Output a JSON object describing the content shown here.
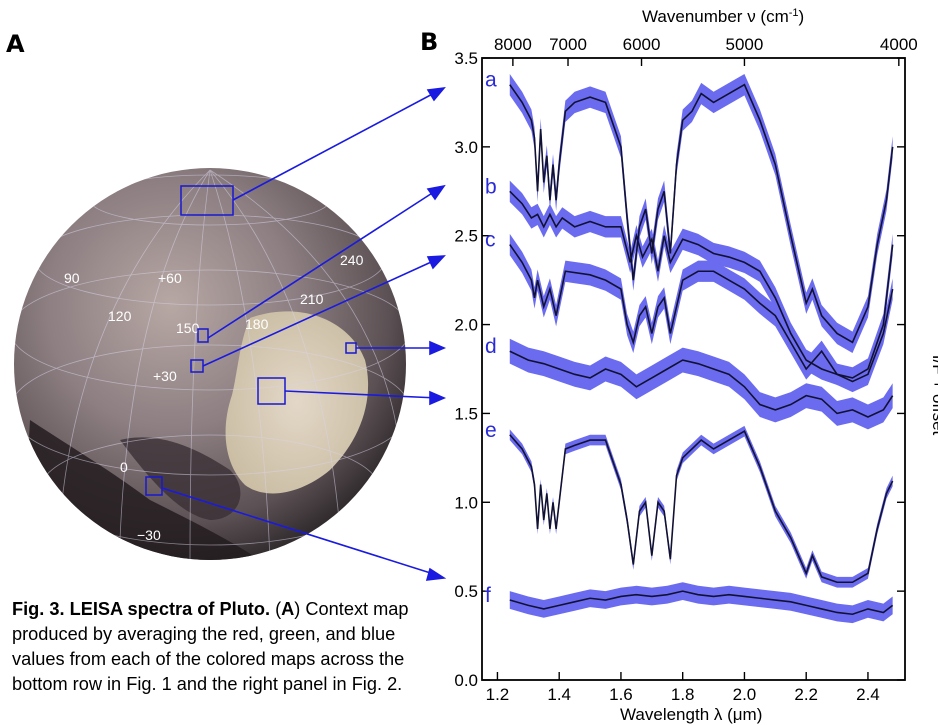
{
  "panel_a_label": "A",
  "panel_b_label": "B",
  "caption": {
    "title": "Fig. 3. LEISA spectra of Pluto.",
    "body_prefix": " (",
    "body_bold_letter": "A",
    "body_rest": ") Context map produced by averaging the red, green, and blue values from each of the colored maps across the bottom row in Fig. 1 and the right panel in Fig. 2."
  },
  "map": {
    "grid_labels": [
      "90",
      "+60",
      "120",
      "150",
      "180",
      "210",
      "240",
      "+30",
      "0",
      "−30"
    ],
    "region_box_color": "#1818d0",
    "arrow_color": "#1a1ae0"
  },
  "chart_data": {
    "type": "line",
    "xlabel": "Wavelength λ (μm)",
    "top_xlabel": "Wavenumber ν (cm",
    "top_xlabel_sup": "-1",
    "top_xlabel_close": ")",
    "ylabel": "I/F + offset",
    "xlim": [
      1.15,
      2.52
    ],
    "ylim": [
      0.0,
      3.5
    ],
    "x_ticks": [
      "1.2",
      "1.4",
      "1.6",
      "1.8",
      "2.0",
      "2.2",
      "2.4"
    ],
    "x_tick_values": [
      1.2,
      1.4,
      1.6,
      1.8,
      2.0,
      2.2,
      2.4
    ],
    "y_ticks": [
      "0.0",
      "0.5",
      "1.0",
      "1.5",
      "2.0",
      "2.5",
      "3.0",
      "3.5"
    ],
    "y_tick_values": [
      0.0,
      0.5,
      1.0,
      1.5,
      2.0,
      2.5,
      3.0,
      3.5
    ],
    "top_ticks": [
      "8000",
      "7000",
      "6000",
      "5000",
      "4000"
    ],
    "top_tick_values": [
      8000,
      7000,
      6000,
      5000,
      4000
    ],
    "band_color": "#6b6bf0",
    "line_color": "#111133",
    "series": [
      {
        "name": "a",
        "band": 0.06,
        "x": [
          1.24,
          1.28,
          1.31,
          1.32,
          1.33,
          1.34,
          1.35,
          1.36,
          1.37,
          1.38,
          1.39,
          1.4,
          1.42,
          1.45,
          1.5,
          1.55,
          1.6,
          1.62,
          1.64,
          1.66,
          1.68,
          1.7,
          1.72,
          1.74,
          1.76,
          1.78,
          1.8,
          1.83,
          1.86,
          1.9,
          1.95,
          2.0,
          2.05,
          2.1,
          2.15,
          2.2,
          2.22,
          2.25,
          2.3,
          2.35,
          2.4,
          2.43,
          2.46,
          2.48
        ],
        "y": [
          3.35,
          3.25,
          3.15,
          3.05,
          2.75,
          3.1,
          2.8,
          2.95,
          2.7,
          2.9,
          2.7,
          2.9,
          3.2,
          3.25,
          3.28,
          3.25,
          3.0,
          2.6,
          2.25,
          2.55,
          2.65,
          2.4,
          2.65,
          2.75,
          2.4,
          2.9,
          3.15,
          3.2,
          3.3,
          3.25,
          3.3,
          3.35,
          3.15,
          2.9,
          2.5,
          2.12,
          2.2,
          2.05,
          1.95,
          1.9,
          2.1,
          2.45,
          2.7,
          3.0
        ]
      },
      {
        "name": "b",
        "band": 0.06,
        "x": [
          1.24,
          1.28,
          1.31,
          1.33,
          1.35,
          1.37,
          1.39,
          1.41,
          1.45,
          1.5,
          1.55,
          1.6,
          1.63,
          1.65,
          1.67,
          1.7,
          1.72,
          1.74,
          1.76,
          1.8,
          1.85,
          1.9,
          1.95,
          2.0,
          2.05,
          2.1,
          2.15,
          2.2,
          2.25,
          2.3,
          2.35,
          2.4,
          2.45,
          2.48
        ],
        "y": [
          2.75,
          2.68,
          2.6,
          2.62,
          2.55,
          2.62,
          2.55,
          2.6,
          2.55,
          2.58,
          2.55,
          2.55,
          2.35,
          2.5,
          2.38,
          2.48,
          2.3,
          2.5,
          2.35,
          2.48,
          2.45,
          2.4,
          2.38,
          2.35,
          2.3,
          2.15,
          1.95,
          1.8,
          1.75,
          1.72,
          1.7,
          1.75,
          2.0,
          2.45
        ]
      },
      {
        "name": "c",
        "band": 0.06,
        "x": [
          1.24,
          1.28,
          1.31,
          1.32,
          1.33,
          1.35,
          1.37,
          1.39,
          1.42,
          1.5,
          1.55,
          1.6,
          1.62,
          1.64,
          1.66,
          1.68,
          1.7,
          1.72,
          1.74,
          1.76,
          1.8,
          1.85,
          1.9,
          1.95,
          2.0,
          2.05,
          2.1,
          2.15,
          2.2,
          2.25,
          2.3,
          2.35,
          2.4,
          2.45,
          2.48
        ],
        "y": [
          2.45,
          2.35,
          2.25,
          2.15,
          2.25,
          2.1,
          2.2,
          2.05,
          2.3,
          2.28,
          2.25,
          2.2,
          2.0,
          1.9,
          2.05,
          2.1,
          1.95,
          2.1,
          2.15,
          1.95,
          2.25,
          2.3,
          2.3,
          2.25,
          2.2,
          2.12,
          2.05,
          1.9,
          1.75,
          1.85,
          1.72,
          1.68,
          1.72,
          1.95,
          2.2
        ]
      },
      {
        "name": "d",
        "band": 0.07,
        "x": [
          1.24,
          1.3,
          1.35,
          1.4,
          1.45,
          1.5,
          1.55,
          1.6,
          1.65,
          1.7,
          1.75,
          1.8,
          1.85,
          1.9,
          1.95,
          2.0,
          2.05,
          2.1,
          2.15,
          2.2,
          2.25,
          2.3,
          2.35,
          2.4,
          2.45,
          2.48
        ],
        "y": [
          1.85,
          1.8,
          1.78,
          1.75,
          1.72,
          1.7,
          1.75,
          1.72,
          1.65,
          1.7,
          1.75,
          1.8,
          1.78,
          1.75,
          1.72,
          1.65,
          1.55,
          1.52,
          1.55,
          1.6,
          1.58,
          1.5,
          1.52,
          1.48,
          1.52,
          1.6
        ]
      },
      {
        "name": "e",
        "band": 0.03,
        "x": [
          1.24,
          1.28,
          1.31,
          1.32,
          1.33,
          1.34,
          1.35,
          1.36,
          1.37,
          1.38,
          1.39,
          1.4,
          1.42,
          1.45,
          1.5,
          1.55,
          1.6,
          1.62,
          1.64,
          1.66,
          1.68,
          1.7,
          1.72,
          1.74,
          1.76,
          1.78,
          1.8,
          1.83,
          1.86,
          1.9,
          1.95,
          2.0,
          2.05,
          2.1,
          2.15,
          2.2,
          2.22,
          2.25,
          2.3,
          2.35,
          2.4,
          2.43,
          2.46,
          2.48
        ],
        "y": [
          1.38,
          1.3,
          1.2,
          1.1,
          0.85,
          1.1,
          0.9,
          1.05,
          0.85,
          1.0,
          0.85,
          1.0,
          1.3,
          1.32,
          1.35,
          1.35,
          1.1,
          0.9,
          0.65,
          0.95,
          1.0,
          0.7,
          1.0,
          0.95,
          0.68,
          1.15,
          1.25,
          1.3,
          1.35,
          1.3,
          1.35,
          1.4,
          1.2,
          0.95,
          0.8,
          0.6,
          0.7,
          0.58,
          0.55,
          0.55,
          0.6,
          0.85,
          1.05,
          1.12
        ]
      },
      {
        "name": "f",
        "band": 0.05,
        "x": [
          1.24,
          1.3,
          1.35,
          1.4,
          1.45,
          1.5,
          1.55,
          1.6,
          1.65,
          1.7,
          1.75,
          1.8,
          1.85,
          1.9,
          1.95,
          2.0,
          2.05,
          2.1,
          2.15,
          2.2,
          2.25,
          2.3,
          2.35,
          2.4,
          2.45,
          2.48
        ],
        "y": [
          0.45,
          0.42,
          0.4,
          0.42,
          0.44,
          0.46,
          0.45,
          0.47,
          0.48,
          0.47,
          0.48,
          0.5,
          0.48,
          0.47,
          0.48,
          0.47,
          0.46,
          0.45,
          0.44,
          0.42,
          0.4,
          0.38,
          0.37,
          0.4,
          0.38,
          0.42
        ]
      }
    ]
  }
}
